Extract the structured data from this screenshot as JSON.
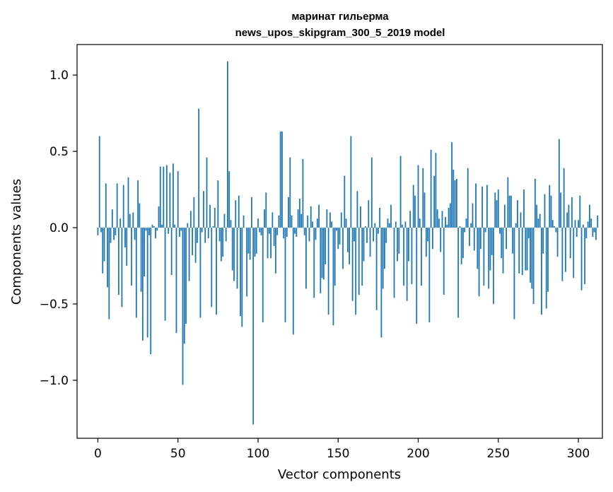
{
  "chart_data": {
    "type": "bar",
    "title": "маринат гильерма",
    "subtitle": "news_upos_skipgram_300_5_2019 model",
    "xlabel": "Vector components",
    "ylabel": "Components values",
    "xlim": [
      -13,
      315
    ],
    "ylim": [
      -1.38,
      1.2
    ],
    "x_ticks": [
      0,
      50,
      100,
      150,
      200,
      250,
      300
    ],
    "x_tick_labels": [
      "0",
      "50",
      "100",
      "150",
      "200",
      "250",
      "300"
    ],
    "y_ticks": [
      -1.0,
      -0.5,
      0.0,
      0.5,
      1.0
    ],
    "y_tick_labels": [
      "−1.0",
      "−0.5",
      "0.0",
      "0.5",
      "1.0"
    ],
    "grid": false,
    "bar_color": "#1f77b4",
    "values": [
      -0.05,
      0.6,
      -0.03,
      -0.3,
      -0.22,
      0.29,
      -0.39,
      -0.6,
      -0.1,
      0.12,
      -0.08,
      -0.05,
      0.29,
      -0.44,
      0.06,
      -0.52,
      0.28,
      -0.13,
      -0.25,
      0.33,
      0.09,
      -0.38,
      0.1,
      -0.08,
      -0.59,
      0.31,
      0.16,
      -0.42,
      -0.74,
      -0.32,
      -0.02,
      -0.72,
      -0.05,
      -0.83,
      0.02,
      0.01,
      -0.07,
      -0.02,
      0.14,
      0.4,
      0.02,
      0.4,
      -0.61,
      0.41,
      -0.04,
      0.36,
      -0.31,
      0.42,
      0.02,
      -0.69,
      0.37,
      -0.06,
      -0.02,
      -1.03,
      -0.76,
      -0.63,
      0.03,
      -0.35,
      0.11,
      -0.18,
      0.2,
      -0.23,
      -0.1,
      0.78,
      -0.59,
      -0.03,
      0.24,
      -0.1,
      0.46,
      -0.07,
      0.15,
      -0.52,
      0.01,
      0.13,
      -0.57,
      0.31,
      -0.09,
      -0.22,
      -0.19,
      0.09,
      -0.09,
      1.09,
      0.37,
      0.05,
      -0.28,
      -0.35,
      0.18,
      -0.4,
      0.21,
      -0.58,
      -0.65,
      0.08,
      0.0,
      -0.45,
      -0.17,
      -0.21,
      0.2,
      -1.29,
      -0.19,
      -0.17,
      0.06,
      -0.03,
      -0.05,
      -0.62,
      0.12,
      0.23,
      -0.2,
      -0.04,
      -0.2,
      0.1,
      -0.12,
      -0.3,
      -0.05,
      0.08,
      0.63,
      0.63,
      -0.07,
      -0.62,
      -0.06,
      0.2,
      0.46,
      0.08,
      -0.7,
      -0.04,
      -0.06,
      0.12,
      0.19,
      0.09,
      0.45,
      -0.05,
      -0.4,
      0.08,
      -0.09,
      0.14,
      0.04,
      -0.46,
      -0.08,
      0.06,
      0.15,
      -0.43,
      -0.33,
      -0.34,
      -0.24,
      0.12,
      -0.57,
      0.1,
      0.04,
      -0.64,
      -0.38,
      -0.02,
      -0.14,
      -0.11,
      0.1,
      -0.27,
      0.34,
      0.06,
      -0.16,
      -0.24,
      0.6,
      -0.48,
      -0.09,
      -0.57,
      0.24,
      -0.44,
      0.14,
      -0.38,
      -0.22,
      0.01,
      -0.1,
      0.18,
      -0.19,
      0.46,
      -0.09,
      0.03,
      -0.54,
      -0.04,
      0.13,
      -0.72,
      -0.4,
      -0.27,
      -0.1,
      0.06,
      0.03,
      0.15,
      0.0,
      -0.46,
      0.04,
      -0.22,
      -0.17,
      0.47,
      0.02,
      -0.38,
      0.04,
      -0.48,
      -0.22,
      0.11,
      -0.37,
      0.28,
      0.21,
      -0.63,
      0.41,
      0.06,
      -0.38,
      0.39,
      0.23,
      -0.19,
      -0.09,
      -0.62,
      0.51,
      -0.14,
      0.34,
      0.49,
      0.12,
      0.06,
      -0.16,
      0.11,
      -0.44,
      0.07,
      0.02,
      0.13,
      0.16,
      0.56,
      0.38,
      0.31,
      0.32,
      -0.59,
      0.01,
      -0.24,
      -0.2,
      -0.03,
      0.06,
      0.39,
      -0.12,
      0.03,
      0.16,
      -0.15,
      0.29,
      -0.27,
      -0.45,
      -0.14,
      0.27,
      -0.38,
      -0.03,
      0.28,
      -0.4,
      -0.28,
      -0.18,
      -0.5,
      0.23,
      0.18,
      0.25,
      -0.04,
      -0.2,
      -0.3,
      0.15,
      -0.14,
      0.33,
      0.21,
      0.21,
      -0.17,
      -0.6,
      0.03,
      0.18,
      -0.3,
      0.1,
      -0.31,
      0.25,
      -0.28,
      -0.28,
      -0.07,
      -0.36,
      -0.4,
      -0.5,
      0.32,
      0.15,
      0.06,
      0.09,
      -0.57,
      -0.17,
      0.22,
      -0.53,
      -0.42,
      0.28,
      0.21,
      0.05,
      0.01,
      -0.03,
      -0.19,
      0.58,
      0.23,
      -0.35,
      0.39,
      -0.29,
      0.1,
      0.15,
      -0.2,
      0.2,
      -0.33,
      0.05,
      -0.06,
      0.05,
      0.21,
      -0.41,
      0.02,
      -0.37,
      -0.07,
      0.04,
      0.15,
      0.06,
      -0.06,
      -0.03,
      -0.08,
      0.08
    ]
  }
}
